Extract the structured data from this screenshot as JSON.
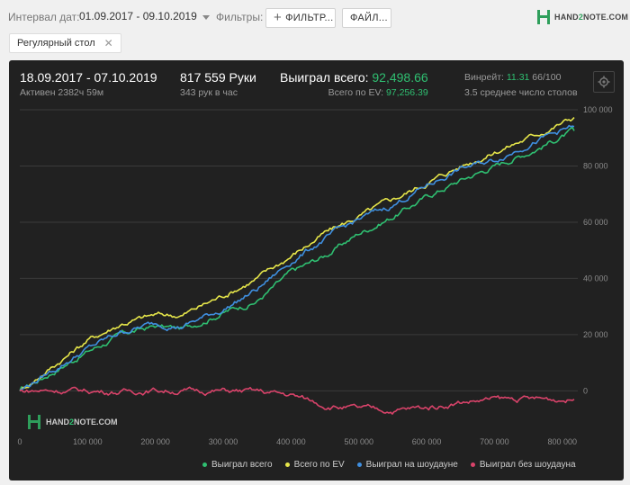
{
  "header": {
    "date_label": "Интервал дат:",
    "date_value": "01.09.2017 - 09.10.2019",
    "filters_label": "Фильтры:",
    "filter_button": "ФИЛЬТР...",
    "file_button": "ФАЙЛ...",
    "brand_prefix": "HAND",
    "brand_two": "2",
    "brand_suffix": "NOTE.COM"
  },
  "chip": {
    "label": "Регулярный стол"
  },
  "stats": {
    "period": "18.09.2017 - 07.10.2019",
    "active": "Активен 2382ч 59м",
    "hands": "817 559 Руки",
    "hands_per_hour": "343 рук в час",
    "won_label": "Выиграл всего:",
    "won_value": "92,498.66",
    "ev_label": "Всего по EV:",
    "ev_value": "97,256.39",
    "winrate_label": "Винрейт:",
    "winrate_value": "11.31",
    "winrate_rest": "66/100",
    "tables": "3.5 среднее число столов"
  },
  "watermark": {
    "prefix": "HAND",
    "two": "2",
    "suffix": "NOTE.COM"
  },
  "colors": {
    "green": "#2fbf71",
    "yellow": "#e6e64a",
    "blue": "#3f8fe0",
    "red": "#d9436a",
    "panel": "#212121"
  },
  "chart_data": {
    "type": "line",
    "xlim": [
      0,
      817559
    ],
    "ylim": [
      -5000,
      100000
    ],
    "x_ticks": [
      0,
      100000,
      200000,
      300000,
      400000,
      500000,
      600000,
      700000,
      800000
    ],
    "x_tick_labels": [
      "0",
      "100 000",
      "200 000",
      "300 000",
      "400 000",
      "500 000",
      "600 000",
      "700 000",
      "800 000"
    ],
    "y_ticks": [
      0,
      20000,
      40000,
      60000,
      80000,
      100000
    ],
    "y_tick_labels": [
      "0",
      "20 000",
      "40 000",
      "60 000",
      "80 000",
      "100 000"
    ],
    "grid": true,
    "legend_position": "bottom",
    "x": [
      0,
      50000,
      100000,
      150000,
      200000,
      240000,
      300000,
      350000,
      400000,
      450000,
      500000,
      550000,
      600000,
      650000,
      700000,
      750000,
      817559
    ],
    "series": [
      {
        "name": "Выиграл всего",
        "color": "#2fbf71",
        "values": [
          0,
          7000,
          14000,
          20000,
          23000,
          22000,
          28000,
          32000,
          42000,
          48000,
          56000,
          62000,
          69000,
          75000,
          80000,
          85000,
          92499
        ]
      },
      {
        "name": "Всего по EV",
        "color": "#e6e64a",
        "values": [
          0,
          9000,
          18000,
          24000,
          27000,
          27000,
          34000,
          40000,
          48000,
          56000,
          62000,
          68000,
          74000,
          80000,
          85000,
          90000,
          97256
        ]
      },
      {
        "name": "Выиграл на шоудауне",
        "color": "#3f8fe0",
        "values": [
          0,
          7500,
          15000,
          21000,
          24000,
          23000,
          29000,
          36000,
          46000,
          54000,
          61000,
          66000,
          73000,
          79000,
          82000,
          88000,
          94000
        ]
      },
      {
        "name": "Выиграл без шоудауна",
        "color": "#d9436a",
        "values": [
          0,
          200,
          0,
          -300,
          300,
          0,
          0,
          -300,
          -1500,
          -5000,
          -6500,
          -7000,
          -6000,
          -4000,
          -3000,
          -3000,
          -3000
        ]
      }
    ]
  }
}
